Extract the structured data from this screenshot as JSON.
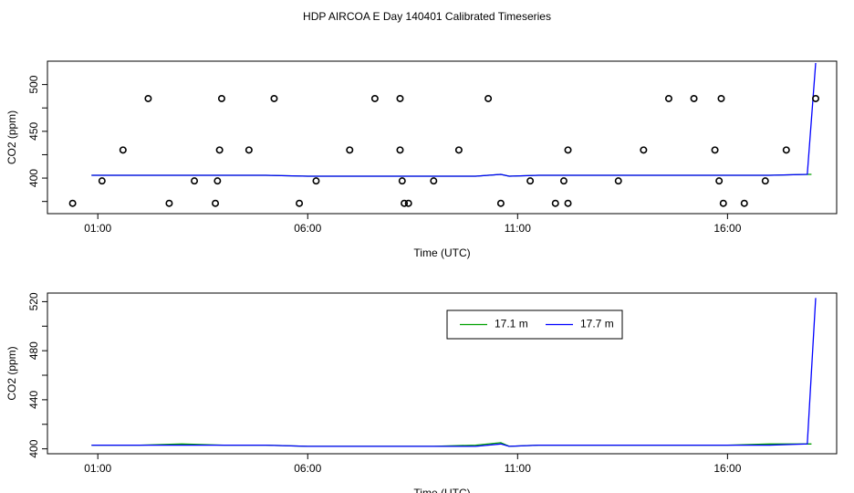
{
  "chart_data": {
    "title": "HDP AIRCOA E  Day 140401  Calibrated Timeseries",
    "colors": {
      "frame": "#000000",
      "green": "#00a000",
      "blue": "#0000ff",
      "points": "#000000"
    },
    "panels": [
      {
        "type": "line",
        "name": "top",
        "xlabel": "Time (UTC)",
        "ylabel": "CO2 (ppm)",
        "xlim": [
          23.8,
          19.75
        ],
        "ylim": [
          362,
          525
        ],
        "yticks": [
          400,
          450,
          500
        ],
        "xticks": [
          {
            "v": 25,
            "label": "01:00"
          },
          {
            "v": 30,
            "label": "06:00"
          },
          {
            "v": 35,
            "label": "11:00"
          },
          {
            "v": 40,
            "label": "16:00"
          }
        ],
        "series": [
          {
            "name": "17.1 m",
            "color": "green",
            "x": [
              24.85,
              26,
              27,
              28,
              29,
              30,
              31,
              32,
              33,
              34,
              34.6,
              34.8,
              35.5,
              36,
              37,
              38,
              39,
              40,
              41,
              41.9,
              42
            ],
            "y": [
              403,
              403,
              403,
              403,
              403,
              402,
              402,
              402,
              402,
              402,
              404,
              402,
              403,
              403,
              403,
              403,
              403,
              403,
              403,
              404,
              404
            ]
          },
          {
            "name": "17.7 m",
            "color": "blue",
            "x": [
              24.85,
              26,
              27,
              28,
              29,
              30,
              31,
              32,
              33,
              34,
              34.6,
              34.8,
              35.5,
              36,
              37,
              38,
              39,
              40,
              41,
              41.9,
              42.1
            ],
            "y": [
              403,
              403,
              403,
              403,
              403,
              402,
              402,
              402,
              402,
              402,
              404,
              402,
              403,
              403,
              403,
              403,
              403,
              403,
              403,
              404,
              523
            ]
          }
        ],
        "points": {
          "x": [
            24.4,
            25.1,
            25.6,
            26.2,
            26.7,
            27.3,
            27.8,
            27.85,
            27.9,
            27.95,
            28.6,
            29.2,
            29.8,
            30.2,
            31.0,
            31.6,
            32.2,
            32.2,
            32.25,
            32.3,
            32.4,
            33.0,
            33.6,
            34.3,
            34.6,
            35.3,
            35.9,
            36.1,
            36.2,
            36.2,
            37.4,
            38.0,
            38.6,
            39.2,
            39.7,
            39.8,
            39.85,
            39.9,
            40.4,
            40.9,
            41.4,
            42.1
          ],
          "y": [
            373,
            397,
            430,
            485,
            373,
            397,
            373,
            397,
            430,
            485,
            430,
            485,
            373,
            397,
            430,
            485,
            485,
            430,
            397,
            373,
            373,
            397,
            430,
            485,
            373,
            397,
            373,
            397,
            430,
            373,
            397,
            430,
            485,
            485,
            430,
            397,
            485,
            373,
            373,
            397,
            430,
            485
          ]
        }
      },
      {
        "type": "line",
        "name": "bottom",
        "xlabel": "Time (UTC)",
        "ylabel": "CO2 (ppm)",
        "xlim": [
          23.8,
          19.75
        ],
        "ylim": [
          396,
          527
        ],
        "yticks": [
          400,
          440,
          480,
          520
        ],
        "xticks": [
          {
            "v": 25,
            "label": "01:00"
          },
          {
            "v": 30,
            "label": "06:00"
          },
          {
            "v": 35,
            "label": "11:00"
          },
          {
            "v": 40,
            "label": "16:00"
          }
        ],
        "legend": {
          "position": "top-right",
          "entries": [
            "17.1 m",
            "17.7 m"
          ]
        },
        "series": [
          {
            "name": "17.1 m",
            "color": "green",
            "x": [
              24.85,
              26,
              27,
              28,
              29,
              30,
              31,
              32,
              33,
              34,
              34.6,
              34.8,
              35.5,
              36,
              37,
              38,
              39,
              40,
              41,
              41.9,
              42
            ],
            "y": [
              403,
              403,
              404,
              403,
              403,
              402,
              402,
              402,
              402,
              403,
              405,
              402,
              403,
              403,
              403,
              403,
              403,
              403,
              404,
              404,
              404
            ]
          },
          {
            "name": "17.7 m",
            "color": "blue",
            "x": [
              24.85,
              26,
              27,
              28,
              29,
              30,
              31,
              32,
              33,
              34,
              34.6,
              34.8,
              35.5,
              36,
              37,
              38,
              39,
              40,
              41,
              41.9,
              42.1
            ],
            "y": [
              403,
              403,
              403,
              403,
              403,
              402,
              402,
              402,
              402,
              402,
              404,
              402,
              403,
              403,
              403,
              403,
              403,
              403,
              403,
              404,
              523
            ]
          }
        ]
      }
    ]
  }
}
